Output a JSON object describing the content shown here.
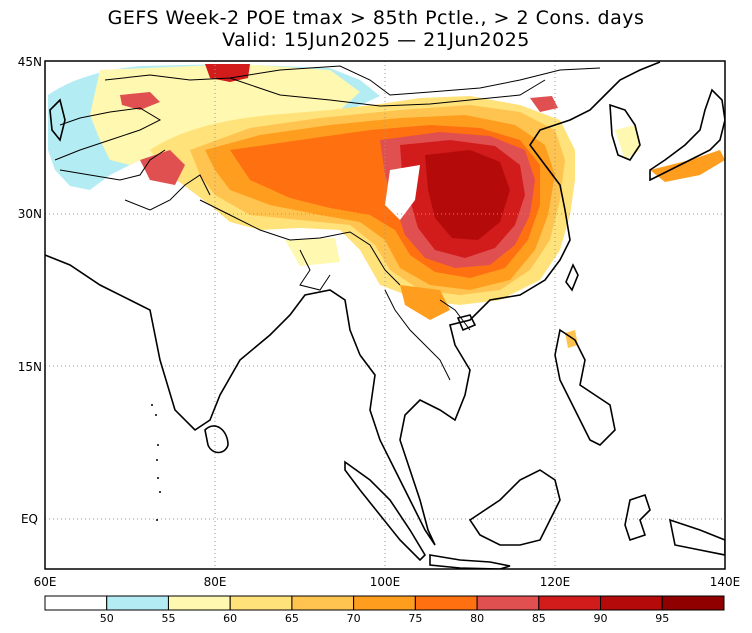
{
  "title_line1": "GEFS Week-2 POE tmax > 85th Pctle., > 2 Cons. days",
  "title_line2": "Valid: 15Jun2025 — 21Jun2025",
  "lat_ticks": [
    "45N",
    "30N",
    "15N",
    "EQ"
  ],
  "lon_ticks": [
    "60E",
    "80E",
    "100E",
    "120E",
    "140E"
  ],
  "colorbar": {
    "labels": [
      "50",
      "55",
      "60",
      "65",
      "70",
      "75",
      "80",
      "85",
      "90",
      "95"
    ],
    "colors": [
      "#ffffff",
      "#b4ecf4",
      "#fff8b0",
      "#ffe27a",
      "#ffc350",
      "#ff9e1e",
      "#ff7010",
      "#e05050",
      "#d21c1c",
      "#b50a0a",
      "#900000"
    ]
  },
  "map_extent": {
    "lon": [
      60,
      140
    ],
    "lat": [
      -5,
      45
    ]
  }
}
